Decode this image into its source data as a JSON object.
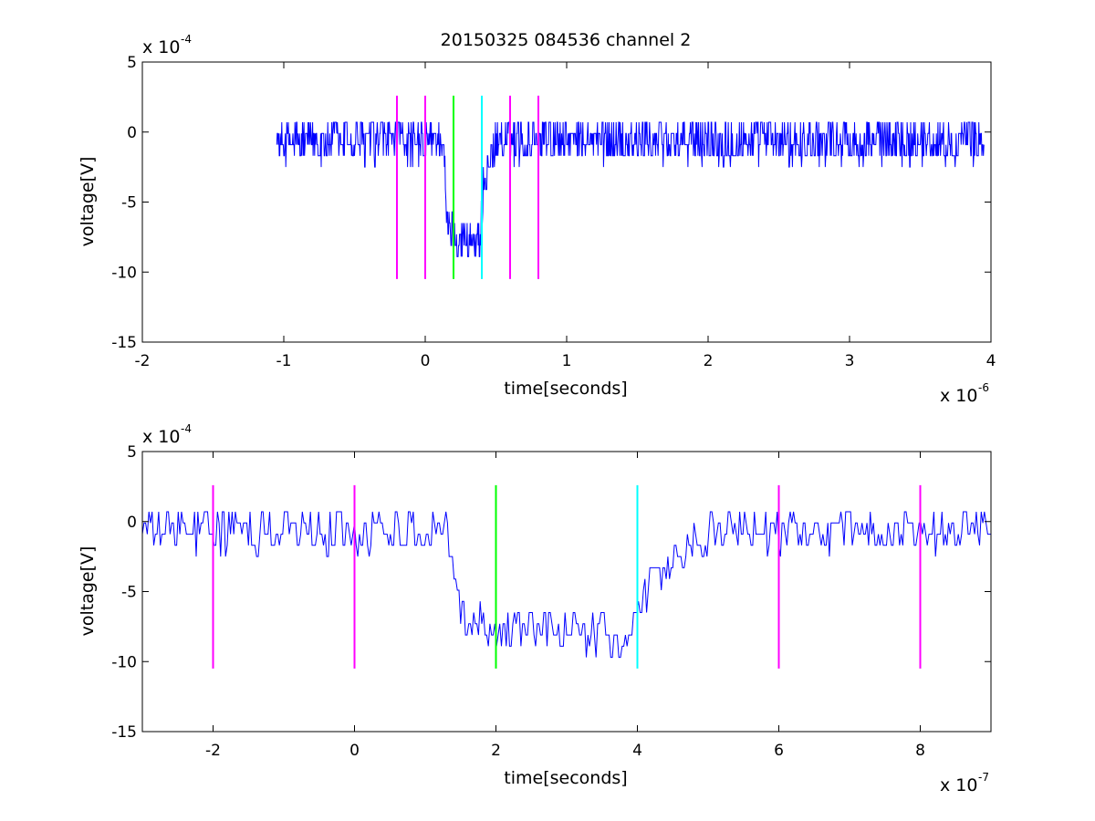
{
  "figure": {
    "title": "20150325 084536 channel 2",
    "colors": {
      "background": "#ffffff",
      "axes": "#000000",
      "trace": "#0000ff",
      "magenta": "#ff00ff",
      "green": "#00ff00",
      "cyan": "#00ffff"
    }
  },
  "chart_data": [
    {
      "type": "line",
      "xlabel": "time[seconds]",
      "ylabel": "voltage[V]",
      "x_exponent": "-6",
      "y_exponent": "-4",
      "xlim": [
        -2,
        4
      ],
      "ylim": [
        -15,
        5
      ],
      "xticks": [
        -2,
        -1,
        0,
        1,
        2,
        3,
        4
      ],
      "yticks": [
        -15,
        -10,
        -5,
        0,
        5
      ],
      "x_units": "1e-6 s",
      "y_units": "1e-4 V",
      "grid": false,
      "trace": {
        "x_start": -1.05,
        "x_end": 3.95,
        "baseline": -0.5,
        "noise_amplitude": 1.6,
        "dip": [
          {
            "x": 0.13,
            "y": -0.5
          },
          {
            "x": 0.15,
            "y": -6.3
          },
          {
            "x": 0.2,
            "y": -7.3
          },
          {
            "x": 0.39,
            "y": -7.8
          },
          {
            "x": 0.41,
            "y": -3.5
          },
          {
            "x": 0.5,
            "y": -0.5
          }
        ]
      },
      "vertical_lines": [
        {
          "x": -0.2,
          "y_range": [
            -10.5,
            2.6
          ],
          "color": "magenta"
        },
        {
          "x": 0.0,
          "y_range": [
            -10.5,
            2.6
          ],
          "color": "magenta"
        },
        {
          "x": 0.2,
          "y_range": [
            -10.5,
            2.6
          ],
          "color": "green"
        },
        {
          "x": 0.4,
          "y_range": [
            -10.5,
            2.6
          ],
          "color": "cyan"
        },
        {
          "x": 0.6,
          "y_range": [
            -10.5,
            2.6
          ],
          "color": "magenta"
        },
        {
          "x": 0.8,
          "y_range": [
            -10.5,
            2.6
          ],
          "color": "magenta"
        }
      ]
    },
    {
      "type": "line",
      "xlabel": "time[seconds]",
      "ylabel": "voltage[V]",
      "x_exponent": "-7",
      "y_exponent": "-4",
      "xlim": [
        -3,
        9
      ],
      "ylim": [
        -15,
        5
      ],
      "xticks": [
        -2,
        0,
        2,
        4,
        6,
        8
      ],
      "yticks": [
        -15,
        -10,
        -5,
        0,
        5
      ],
      "x_units": "1e-7 s",
      "y_units": "1e-4 V",
      "grid": false,
      "trace": {
        "x_start": -3,
        "x_end": 9,
        "baseline": -0.5,
        "noise_amplitude": 1.6,
        "dip": [
          {
            "x": 1.3,
            "y": -0.5
          },
          {
            "x": 1.5,
            "y": -6.3
          },
          {
            "x": 2.0,
            "y": -7.4
          },
          {
            "x": 3.9,
            "y": -8.0
          },
          {
            "x": 4.1,
            "y": -5.0
          },
          {
            "x": 5.0,
            "y": -0.5
          }
        ]
      },
      "vertical_lines": [
        {
          "x": -2,
          "y_range": [
            -10.5,
            2.6
          ],
          "color": "magenta"
        },
        {
          "x": 0,
          "y_range": [
            -10.5,
            2.6
          ],
          "color": "magenta"
        },
        {
          "x": 2,
          "y_range": [
            -10.5,
            2.6
          ],
          "color": "green"
        },
        {
          "x": 4,
          "y_range": [
            -10.5,
            2.6
          ],
          "color": "cyan"
        },
        {
          "x": 6,
          "y_range": [
            -10.5,
            2.6
          ],
          "color": "magenta"
        },
        {
          "x": 8,
          "y_range": [
            -10.5,
            2.6
          ],
          "color": "magenta"
        }
      ]
    }
  ]
}
